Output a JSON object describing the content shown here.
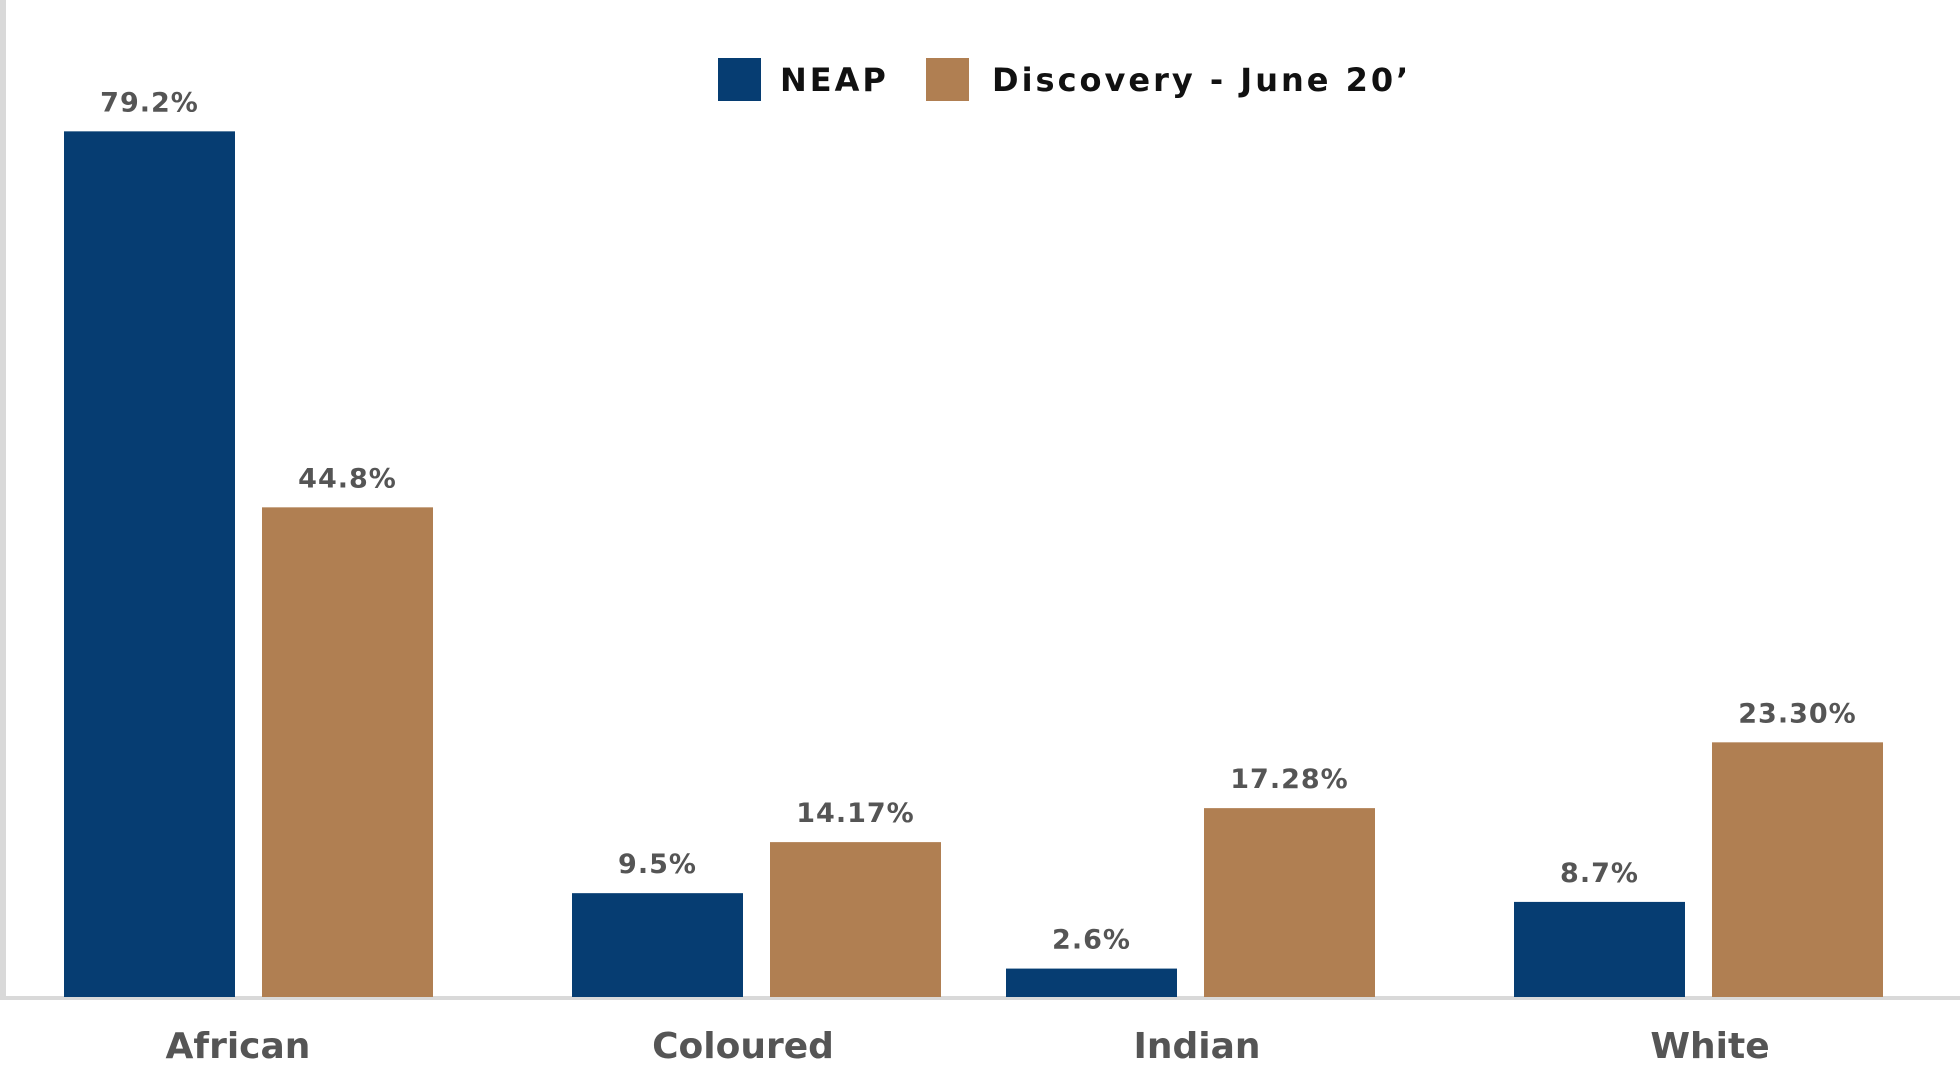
{
  "chart_data": {
    "type": "bar",
    "categories": [
      "African",
      "Coloured",
      "Indian",
      "White"
    ],
    "series": [
      {
        "name": "NEAP",
        "color": "#063d72",
        "values": [
          79.2,
          9.5,
          2.6,
          8.7
        ],
        "labels": [
          "79.2%",
          "9.5%",
          "2.6%",
          "8.7%"
        ]
      },
      {
        "name": "Discovery - June 20’",
        "color": "#b07f52",
        "values": [
          44.8,
          14.17,
          17.28,
          23.3
        ],
        "labels": [
          "44.8%",
          "14.17%",
          "17.28%",
          "23.30%"
        ]
      }
    ],
    "ylim": [
      0,
      90
    ],
    "grid": false,
    "legend_position": "top-center"
  }
}
